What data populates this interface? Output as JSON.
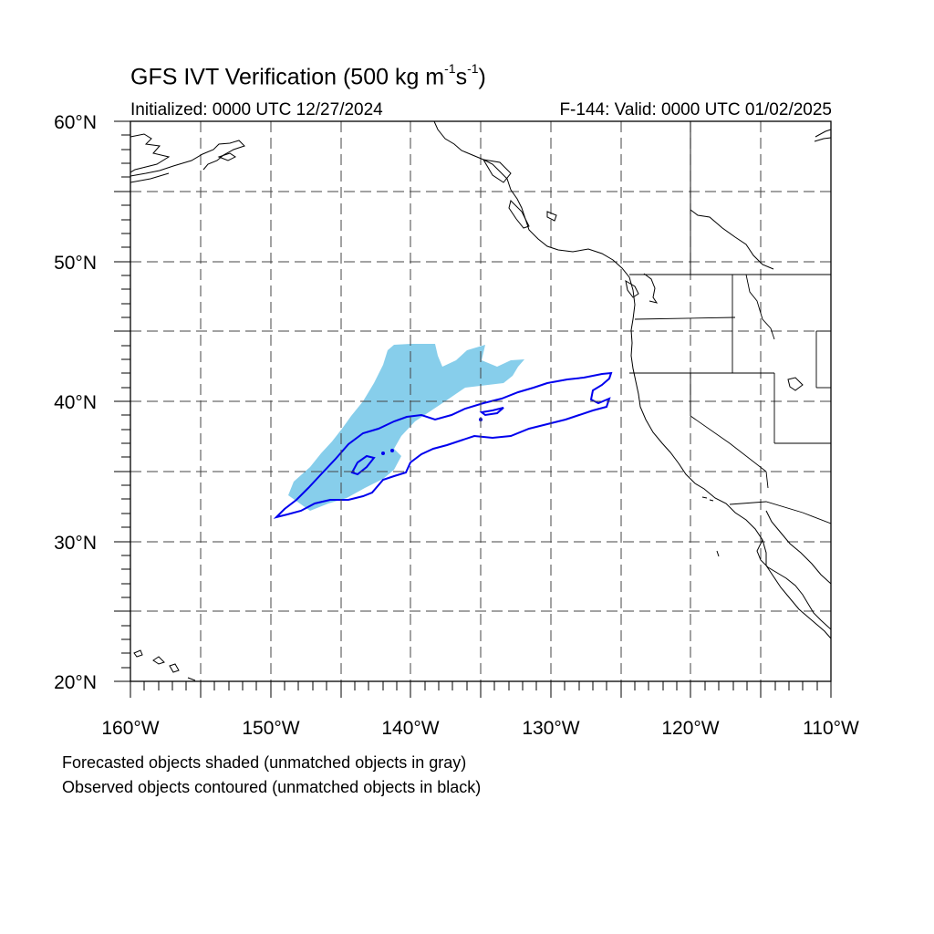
{
  "header": {
    "title_main": "GFS IVT Verification (500 kg m",
    "title_exp1": "-1",
    "title_mid": "s",
    "title_exp2": "-1",
    "title_end": ")",
    "initialized": "Initialized: 0000 UTC 12/27/2024",
    "valid": "F-144: Valid: 0000 UTC 01/02/2025"
  },
  "map": {
    "lon_range": [
      -160,
      -110
    ],
    "lat_range": [
      20,
      60
    ],
    "lon_labels": [
      "160°W",
      "150°W",
      "140°W",
      "130°W",
      "120°W",
      "110°W"
    ],
    "lat_labels": [
      "20°N",
      "30°N",
      "40°N",
      "50°N",
      "60°N"
    ],
    "grid": "dashed every 5°",
    "forecast_shade_color": "#87ceeb",
    "observed_contour_color": "#0000ee",
    "coastline_color": "#000000"
  },
  "legend": {
    "line1": "Forecasted objects shaded (unmatched objects in gray)",
    "line2": "Observed objects contoured (unmatched objects in black)"
  }
}
